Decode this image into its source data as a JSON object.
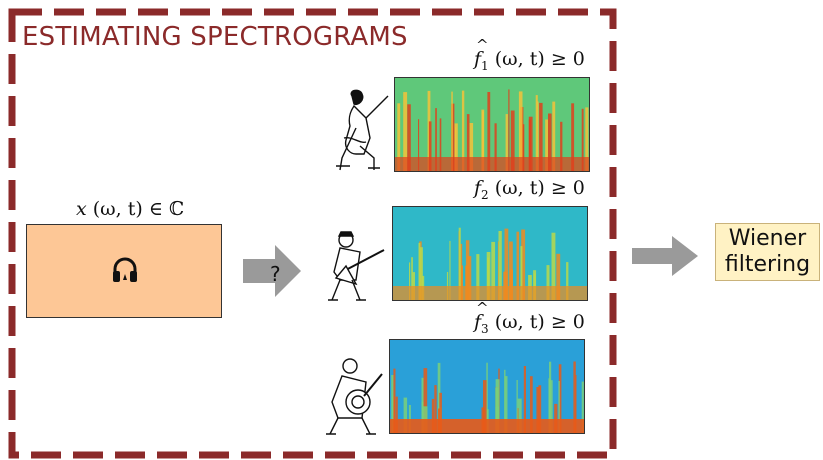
{
  "title": "ESTIMATING SPECTROGRAMS",
  "mixture": {
    "label_var": "x",
    "label_args": "(ω, t)",
    "label_rel": "∈ ℂ",
    "icon": "headphone-icon",
    "color": "#fdc796"
  },
  "question_mark": "?",
  "sources": [
    {
      "var": "f",
      "sub": "1",
      "args": "(ω, t)",
      "rel": "≥ 0",
      "icon": "singer-icon"
    },
    {
      "var": "f",
      "sub": "2",
      "args": "(ω, t)",
      "rel": "≥ 0",
      "icon": "balalaika-player-icon"
    },
    {
      "var": "f",
      "sub": "3",
      "args": "(ω, t)",
      "rel": "≥ 0",
      "icon": "banjo-player-icon"
    }
  ],
  "output": {
    "line1": "Wiener",
    "line2": "filtering",
    "color": "#fff2c4"
  },
  "frame_color": "#8b2a2a",
  "arrow_color": "#9a9a9a"
}
